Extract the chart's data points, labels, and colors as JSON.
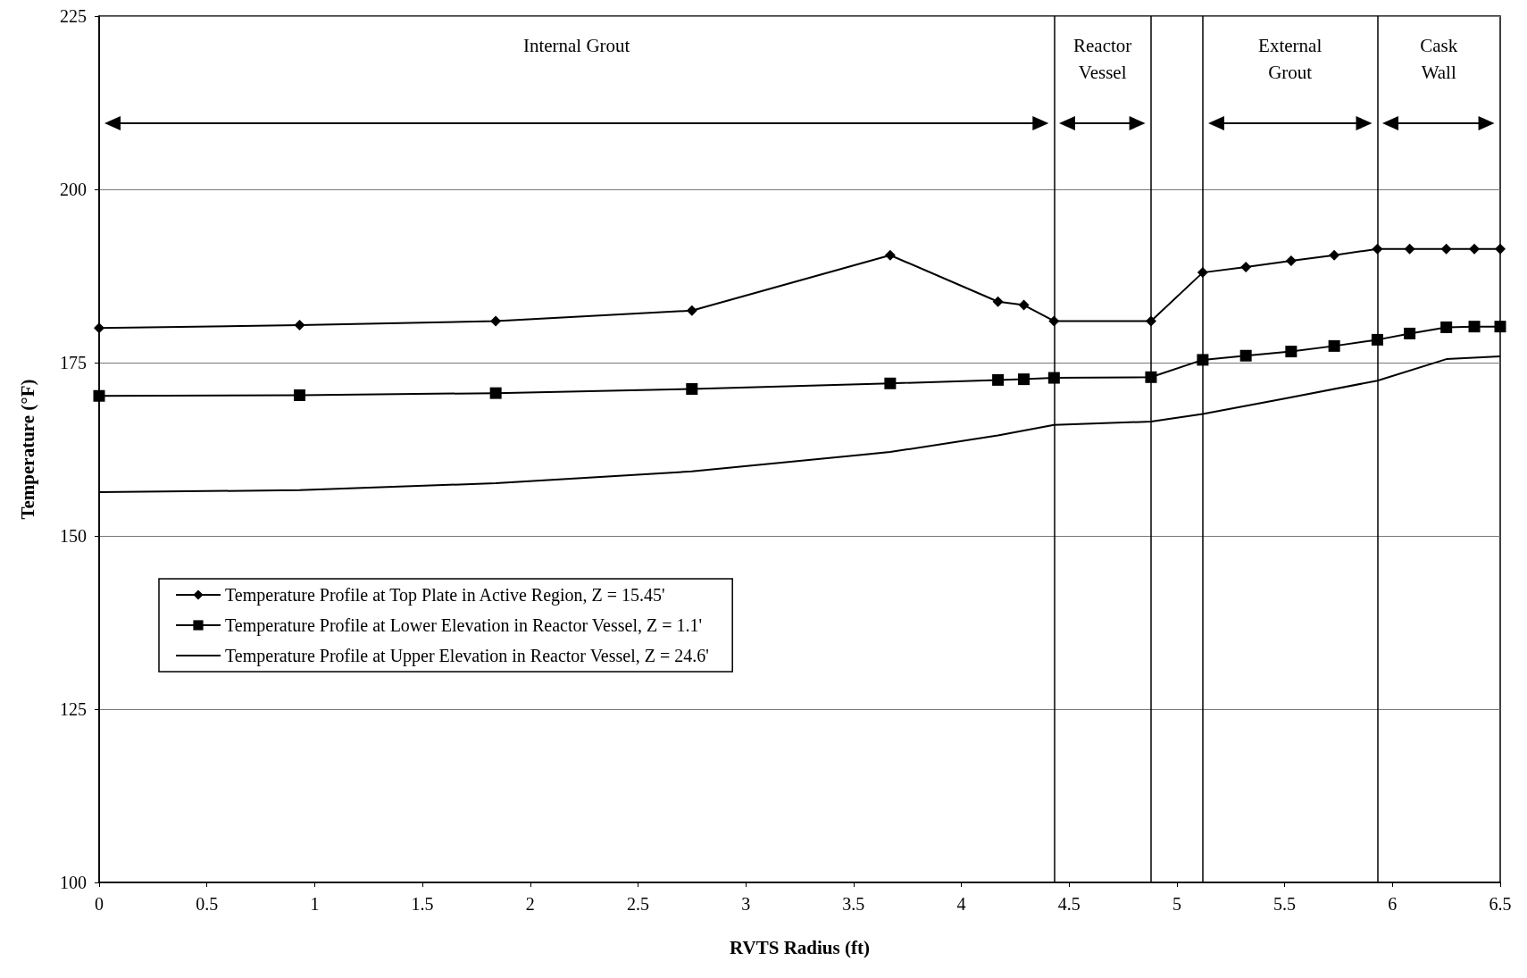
{
  "chart_data": {
    "type": "line",
    "xlabel": "RVTS Radius (ft)",
    "ylabel": "Temperature (°F)",
    "xlim": [
      0,
      6.5
    ],
    "xticks": [
      0,
      0.5,
      1,
      1.5,
      2,
      2.5,
      3,
      3.5,
      4,
      4.5,
      5,
      5.5,
      6,
      6.5
    ],
    "ylim": [
      100,
      225
    ],
    "yticks": [
      100,
      125,
      150,
      175,
      200,
      225
    ],
    "grid": "y",
    "legend": "left",
    "series": [
      {
        "name": "Temperature Profile at Top Plate in Active Region, Z = 15.45'",
        "color": "#000000",
        "marker": "diamond",
        "x": [
          0,
          0.93,
          1.84,
          2.75,
          3.67,
          4.17,
          4.29,
          4.43,
          4.88,
          5.12,
          5.32,
          5.53,
          5.73,
          5.93,
          6.08,
          6.25,
          6.38,
          6.5
        ],
        "values": [
          180,
          180.4,
          181,
          182.5,
          190.5,
          183.8,
          183.3,
          181,
          181,
          188,
          188.8,
          189.7,
          190.5,
          191.4,
          191.4,
          191.4,
          191.4,
          191.4
        ]
      },
      {
        "name": "Temperature Profile at Lower Elevation in Reactor Vessel, Z = 1.1'",
        "color": "#000000",
        "marker": "square",
        "x": [
          0,
          0.93,
          1.84,
          2.75,
          3.67,
          4.17,
          4.29,
          4.43,
          4.88,
          5.12,
          5.32,
          5.53,
          5.73,
          5.93,
          6.08,
          6.25,
          6.38,
          6.5
        ],
        "values": [
          170.2,
          170.3,
          170.6,
          171.2,
          172,
          172.5,
          172.6,
          172.8,
          172.9,
          175.4,
          176,
          176.6,
          177.4,
          178.3,
          179.2,
          180.1,
          180.2,
          180.2
        ]
      },
      {
        "name": "Temperature Profile at Upper Elevation in Reactor Vessel, Z = 24.6'",
        "color": "#000000",
        "marker": "none",
        "x": [
          0,
          0.93,
          1.84,
          2.75,
          3.67,
          4.17,
          4.43,
          4.88,
          5.12,
          5.5,
          5.93,
          6.25,
          6.5
        ],
        "values": [
          156.3,
          156.6,
          157.6,
          159.3,
          162.1,
          164.5,
          166,
          166.5,
          167.6,
          169.8,
          172.4,
          175.5,
          175.9
        ]
      }
    ],
    "ref_lines": [
      {
        "axis": "x",
        "value": 4.43,
        "color": "#000000"
      },
      {
        "axis": "x",
        "value": 4.88,
        "color": "#000000"
      },
      {
        "axis": "x",
        "value": 5.12,
        "color": "#000000"
      },
      {
        "axis": "x",
        "value": 5.93,
        "color": "#000000"
      }
    ],
    "annotations": [
      "Internal Grout",
      "Reactor\nVessel",
      "External\nGrout",
      "Cask\nWall"
    ]
  }
}
